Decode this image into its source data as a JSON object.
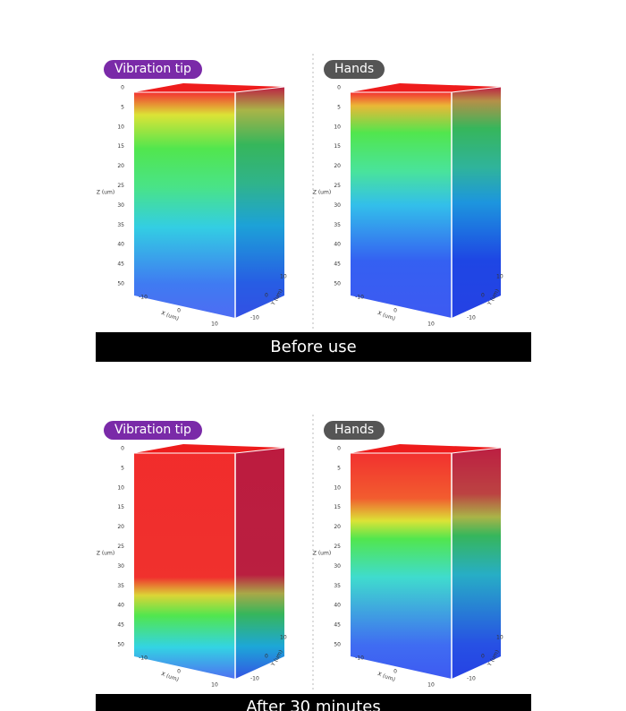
{
  "panels": [
    {
      "badge": "Vibration tip"
    },
    {
      "badge": "Hands"
    },
    {
      "badge": "Vibration tip"
    },
    {
      "badge": "Hands"
    }
  ],
  "axes": {
    "z_ticks": [
      0,
      5,
      10,
      15,
      20,
      25,
      30,
      35,
      40,
      45,
      50
    ],
    "z_label": "Z (um)",
    "x_ticks": [
      -10,
      0,
      10
    ],
    "x_label": "X (um)",
    "y_ticks": [
      10,
      0,
      -10
    ],
    "y_label": "Y (um)"
  },
  "captions": [
    "Before use",
    "After 30 minutes"
  ]
}
